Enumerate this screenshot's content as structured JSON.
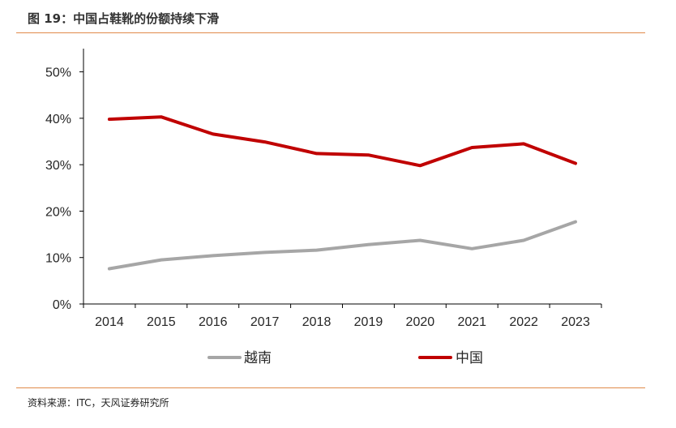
{
  "header": {
    "title": "图 19：中国占鞋靴的份额持续下滑"
  },
  "footer": {
    "source": "资料来源：ITC，天风证券研究所"
  },
  "colors": {
    "accent_rule": "#E08A4A",
    "china": "#C00000",
    "vietnam": "#A6A6A6",
    "axis": "#000000"
  },
  "chart_data": {
    "type": "line",
    "title": "中国占鞋靴的份额持续下滑",
    "xlabel": "",
    "ylabel": "",
    "categories": [
      "2014",
      "2015",
      "2016",
      "2017",
      "2018",
      "2019",
      "2020",
      "2021",
      "2022",
      "2023"
    ],
    "yticks": [
      0,
      10,
      20,
      30,
      40,
      50
    ],
    "ytick_labels": [
      "0%",
      "10%",
      "20%",
      "30%",
      "40%",
      "50%"
    ],
    "ylim": [
      0,
      55
    ],
    "grid": false,
    "legend_position": "bottom",
    "series": [
      {
        "name": "越南",
        "color": "#A6A6A6",
        "values": [
          7.6,
          9.5,
          10.4,
          11.1,
          11.6,
          12.8,
          13.7,
          11.9,
          13.7,
          17.7
        ]
      },
      {
        "name": "中国",
        "color": "#C00000",
        "values": [
          39.8,
          40.3,
          36.6,
          34.9,
          32.4,
          32.1,
          29.8,
          33.7,
          34.5,
          30.3
        ]
      }
    ]
  }
}
